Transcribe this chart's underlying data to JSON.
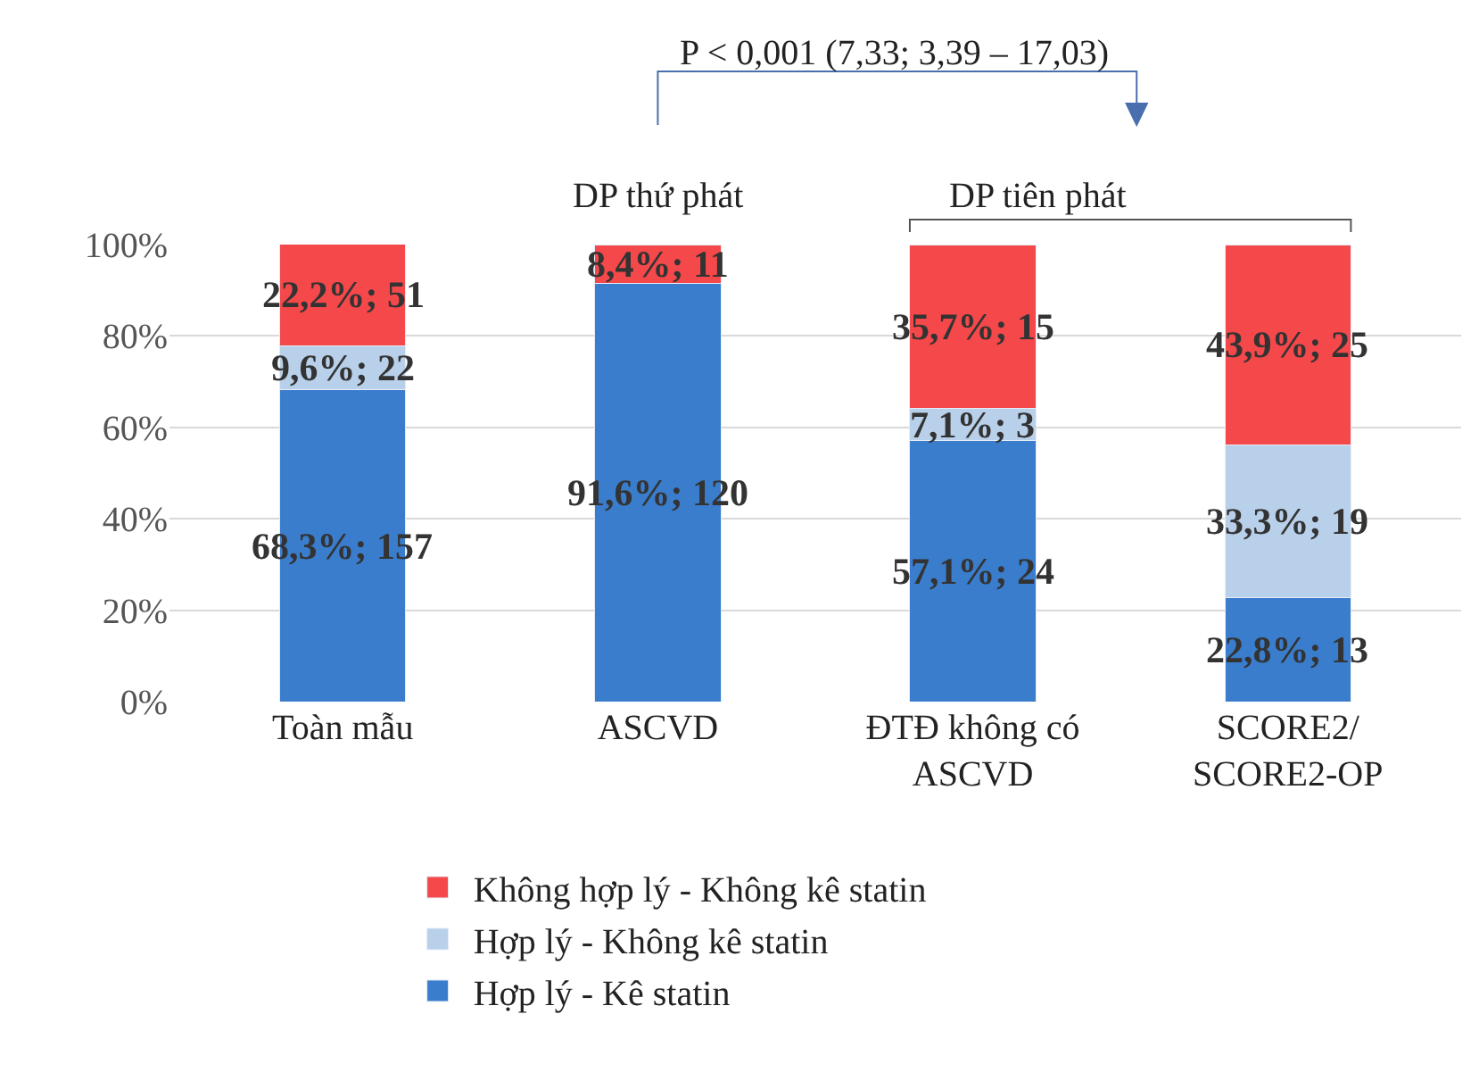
{
  "chart_data": {
    "type": "bar",
    "stacked": true,
    "categories": [
      "Toàn mẫu",
      "ASCVD",
      "ĐTĐ không có\nASCVD",
      "SCORE2/\nSCORE2-OP"
    ],
    "series": [
      {
        "name": "Hợp lý - Kê statin",
        "color": "#3a7dcc",
        "values": [
          68.3,
          91.6,
          57.1,
          22.8
        ],
        "value_labels": [
          "68,3%; 157",
          "91,6%; 120",
          "57,1%; 24",
          "22,8%; 13"
        ]
      },
      {
        "name": "Hợp lý - Không kê statin",
        "color": "#b9d0ea",
        "values": [
          9.6,
          0,
          7.1,
          33.3
        ],
        "value_labels": [
          "9,6%; 22",
          null,
          "7,1%; 3",
          "33,3%; 19"
        ]
      },
      {
        "name": "Không hợp lý - Không kê statin",
        "color": "#f4484a",
        "values": [
          22.2,
          8.4,
          35.7,
          43.9
        ],
        "value_labels": [
          "22,2%; 51",
          "8,4%; 11",
          "35,7%; 15",
          "43,9%; 25"
        ]
      }
    ],
    "ylim": [
      0,
      100
    ],
    "yticks": [
      {
        "value": 0,
        "label": "0%"
      },
      {
        "value": 20,
        "label": "20%"
      },
      {
        "value": 40,
        "label": "40%"
      },
      {
        "value": 60,
        "label": "60%"
      },
      {
        "value": 80,
        "label": "80%"
      },
      {
        "value": 100,
        "label": "100%"
      }
    ],
    "grid": "y",
    "legend": "bottom",
    "annotations": [
      "P < 0,001 (7,33; 3,39 – 17,03)",
      "DP thứ phát",
      "DP tiên phát"
    ]
  }
}
